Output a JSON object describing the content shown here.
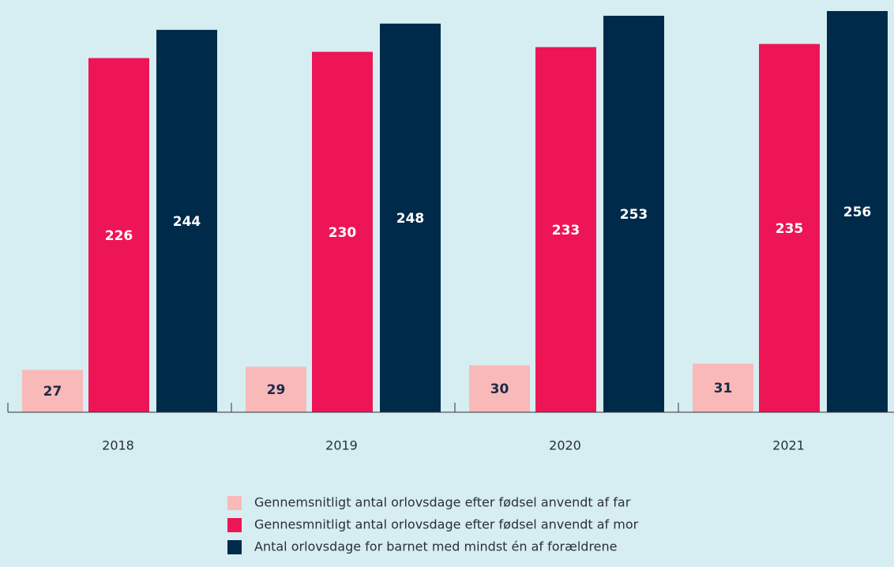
{
  "chart_data": {
    "type": "bar",
    "categories": [
      "2018",
      "2019",
      "2020",
      "2021"
    ],
    "series": [
      {
        "name": "Gennemsnitligt antal orlovsdage efter fødsel anvendt af far",
        "color": "#f9b9b9",
        "values": [
          27,
          29,
          30,
          31
        ]
      },
      {
        "name": "Gennesmnitligt antal orlovsdage efter fødsel anvendt af mor",
        "color": "#ee1556",
        "values": [
          226,
          230,
          233,
          235
        ]
      },
      {
        "name": "Antal orlovsdage for barnet med mindst én af forældrene",
        "color": "#002a4a",
        "values": [
          244,
          248,
          253,
          256
        ]
      }
    ],
    "ylim": [
      0,
      256
    ]
  }
}
